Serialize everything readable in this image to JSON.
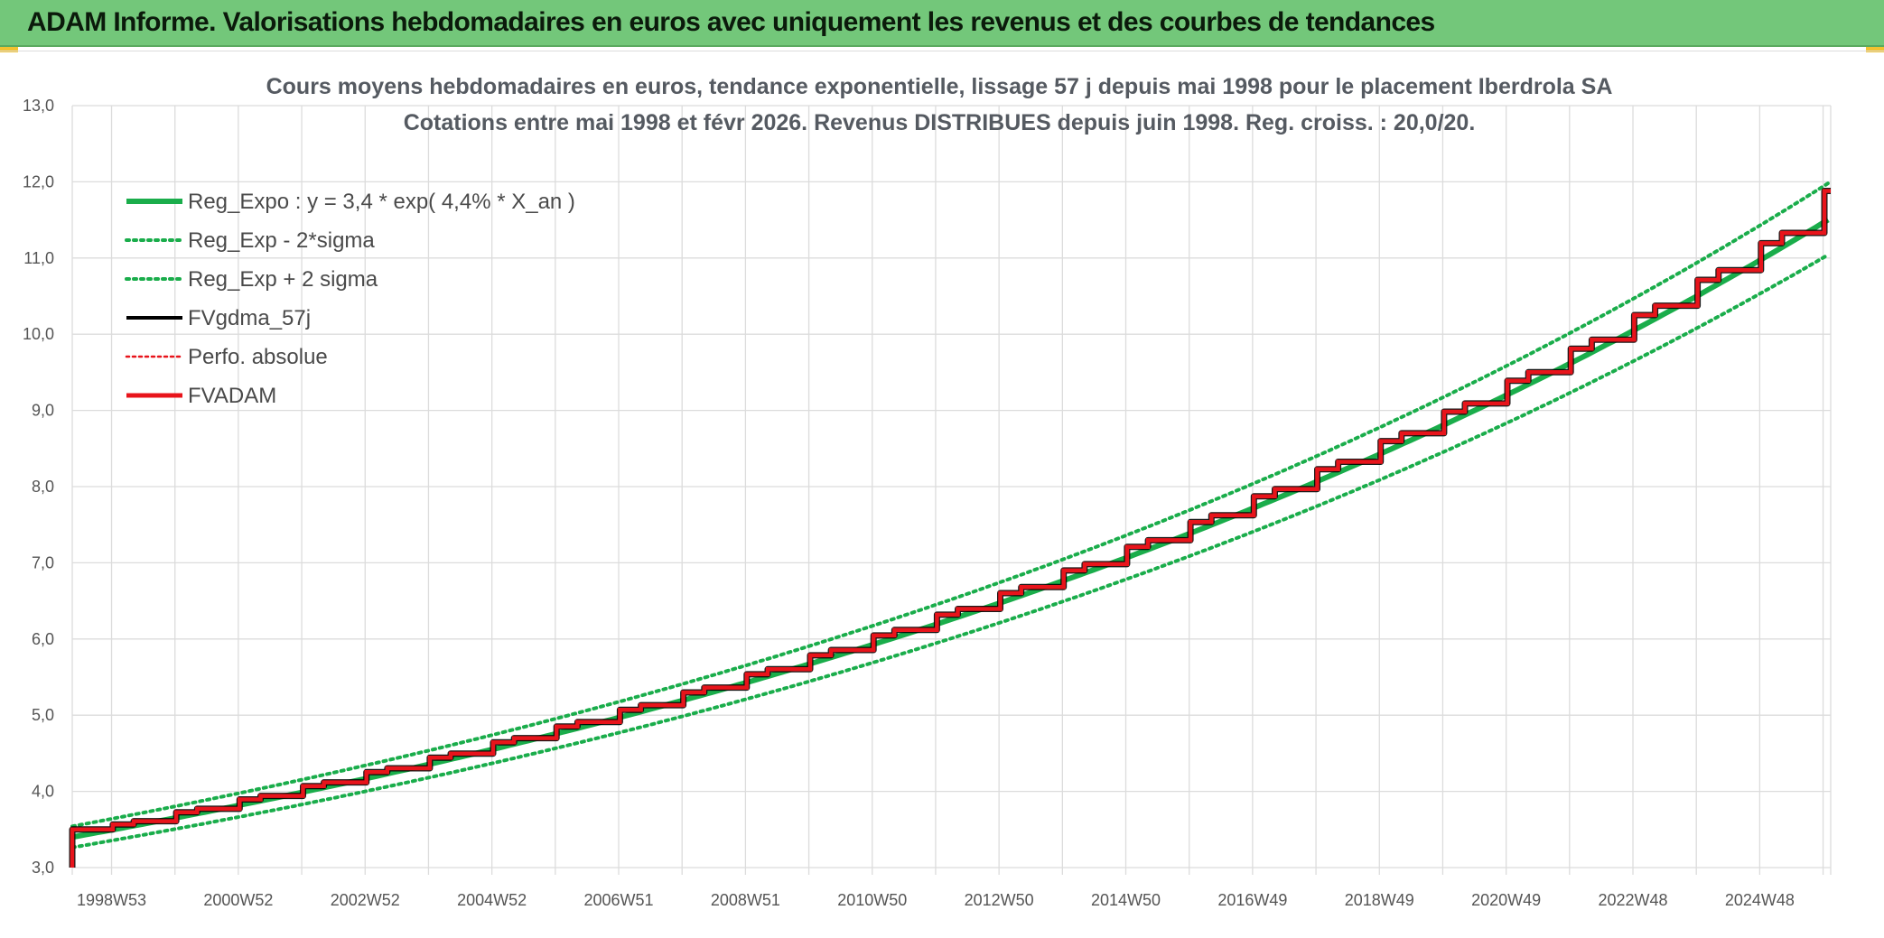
{
  "banner": {
    "title": "ADAM Informe. Valorisations hebdomadaires en euros avec uniquement les revenus et des courbes de tendances"
  },
  "colors": {
    "banner_bg": "#73c77a",
    "reg_expo": "#1aad4b",
    "fvgdma": "#000000",
    "fvadam": "#e8141b",
    "perfo": "#e8141b",
    "grid": "#dcdcdc"
  },
  "chart_data": {
    "type": "line",
    "title_lines": [
      "Cours moyens hebdomadaires en euros, tendance exponentielle, lissage 57 j depuis mai 1998 pour le placement Iberdrola SA",
      "Cotations entre mai 1998 et févr 2026. Revenus DISTRIBUES depuis juin 1998. Reg. croiss. : 20,0/20."
    ],
    "ylim": [
      3.0,
      13.0
    ],
    "y_ticks": [
      "3,0",
      "4,0",
      "5,0",
      "6,0",
      "7,0",
      "8,0",
      "9,0",
      "10,0",
      "11,0",
      "12,0",
      "13,0"
    ],
    "x_range": [
      1998.38,
      2026.12
    ],
    "x_ticks": [
      {
        "label": "1998W53",
        "x": 1999.0
      },
      {
        "label": "2000W52",
        "x": 2001.0
      },
      {
        "label": "2002W52",
        "x": 2003.0
      },
      {
        "label": "2004W52",
        "x": 2005.0
      },
      {
        "label": "2006W51",
        "x": 2007.0
      },
      {
        "label": "2008W51",
        "x": 2009.0
      },
      {
        "label": "2010W50",
        "x": 2011.0
      },
      {
        "label": "2012W50",
        "x": 2013.0
      },
      {
        "label": "2014W50",
        "x": 2015.0
      },
      {
        "label": "2016W49",
        "x": 2017.0
      },
      {
        "label": "2018W49",
        "x": 2019.0
      },
      {
        "label": "2020W49",
        "x": 2021.0
      },
      {
        "label": "2022W48",
        "x": 2023.0
      },
      {
        "label": "2024W48",
        "x": 2025.0
      }
    ],
    "grid": true,
    "legend_position": "top-left",
    "regression": {
      "a": 3.4,
      "rate": 0.044,
      "x0": 1998.38,
      "band_factor": 0.96
    },
    "series": [
      {
        "name": "Reg_Expo : y = 3,4 * exp( 4,4% *  X_an )",
        "key": "reg_expo",
        "style": "solid-thick",
        "x": [
          1998.38,
          2000,
          2002,
          2004,
          2006,
          2008,
          2010,
          2012,
          2014,
          2016,
          2018,
          2020,
          2022,
          2024,
          2026.12
        ],
        "values": [
          3.4,
          3.62,
          3.93,
          4.31,
          4.68,
          5.13,
          5.59,
          6.17,
          6.76,
          7.42,
          8.12,
          8.91,
          9.76,
          10.7,
          11.65
        ]
      },
      {
        "name": "Reg_Exp - 2*sigma",
        "key": "reg_minus",
        "style": "dotted",
        "x": [
          1998.38,
          2000,
          2002,
          2004,
          2006,
          2008,
          2010,
          2012,
          2014,
          2016,
          2018,
          2020,
          2022,
          2024,
          2026.12
        ],
        "values": [
          3.27,
          3.47,
          3.77,
          4.14,
          4.49,
          4.92,
          5.37,
          5.92,
          6.49,
          7.12,
          7.8,
          8.55,
          9.37,
          10.27,
          11.2
        ]
      },
      {
        "name": "Reg_Exp + 2 sigma",
        "key": "reg_plus",
        "style": "dotted",
        "x": [
          1998.38,
          2000,
          2002,
          2004,
          2006,
          2008,
          2010,
          2012,
          2014,
          2016,
          2018,
          2020,
          2022,
          2024,
          2026.12
        ],
        "values": [
          3.54,
          3.77,
          4.09,
          4.48,
          4.87,
          5.34,
          5.82,
          6.42,
          7.04,
          7.72,
          8.45,
          9.27,
          10.15,
          11.13,
          12.1
        ]
      },
      {
        "name": "FVgdma_57j",
        "key": "fvgdma",
        "style": "solid-thin"
      },
      {
        "name": "Perfo. absolue",
        "key": "perfo",
        "style": "dotted-red"
      },
      {
        "name": "FVADAM",
        "key": "fvadam",
        "style": "step",
        "start": {
          "x": 1998.38,
          "y0": 3.0,
          "y1": 3.5
        },
        "end_value": 11.88
      }
    ]
  }
}
